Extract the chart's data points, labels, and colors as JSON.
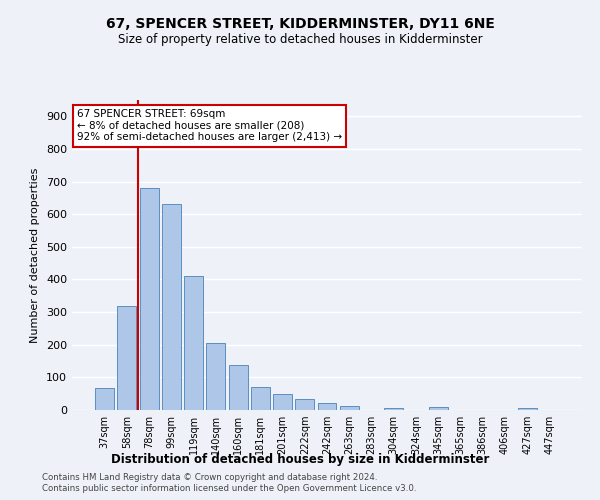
{
  "title": "67, SPENCER STREET, KIDDERMINSTER, DY11 6NE",
  "subtitle": "Size of property relative to detached houses in Kidderminster",
  "xlabel": "Distribution of detached houses by size in Kidderminster",
  "ylabel": "Number of detached properties",
  "categories": [
    "37sqm",
    "58sqm",
    "78sqm",
    "99sqm",
    "119sqm",
    "140sqm",
    "160sqm",
    "181sqm",
    "201sqm",
    "222sqm",
    "242sqm",
    "263sqm",
    "283sqm",
    "304sqm",
    "324sqm",
    "345sqm",
    "365sqm",
    "386sqm",
    "406sqm",
    "427sqm",
    "447sqm"
  ],
  "values": [
    68,
    320,
    680,
    630,
    410,
    205,
    138,
    70,
    48,
    35,
    22,
    11,
    0,
    7,
    0,
    10,
    0,
    0,
    0,
    7,
    0
  ],
  "bar_color": "#aec6e8",
  "bar_edge_color": "#5a8fc0",
  "vline_x_index": 1.5,
  "vline_color": "#cc0000",
  "annotation_text": "67 SPENCER STREET: 69sqm\n← 8% of detached houses are smaller (208)\n92% of semi-detached houses are larger (2,413) →",
  "annotation_box_color": "#cc0000",
  "ylim": [
    0,
    950
  ],
  "yticks": [
    0,
    100,
    200,
    300,
    400,
    500,
    600,
    700,
    800,
    900
  ],
  "footer_line1": "Contains HM Land Registry data © Crown copyright and database right 2024.",
  "footer_line2": "Contains public sector information licensed under the Open Government Licence v3.0.",
  "bg_color": "#eef2f8",
  "grid_color": "#ffffff"
}
